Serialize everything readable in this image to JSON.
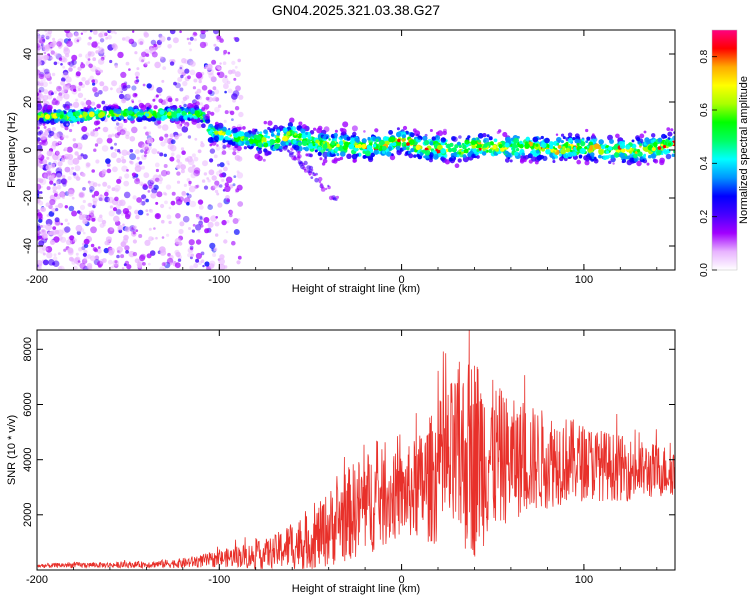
{
  "title": "GN04.2025.321.03.38.G27",
  "chart_data": [
    {
      "type": "heatmap",
      "xlabel": "Height of straight line (km)",
      "ylabel": "Frequency (Hz)",
      "xlim": [
        -200,
        150
      ],
      "ylim": [
        -50,
        50
      ],
      "xticks": [
        -200,
        -100,
        0,
        100
      ],
      "yticks": [
        -40,
        -20,
        0,
        20,
        40
      ],
      "colorbar": {
        "label": "Normalized spectral amplitude",
        "range": [
          0.0,
          0.9
        ],
        "ticks": [
          "0.0",
          "0.2",
          "0.4",
          "0.6",
          "0.8"
        ],
        "colors": [
          "#ffffff",
          "#e8b3ff",
          "#a100ff",
          "#4600ff",
          "#0000ff",
          "#0096ff",
          "#00ffff",
          "#00ff64",
          "#00ff00",
          "#aaff00",
          "#ffff00",
          "#ffaa00",
          "#ff0000",
          "#ff0080"
        ]
      },
      "ridge": {
        "x": [
          -200,
          -180,
          -160,
          -140,
          -120,
          -110,
          -105,
          -100,
          -95,
          -90,
          -80,
          -70,
          -60,
          -50,
          -40,
          -30,
          -20,
          -10,
          0,
          10,
          20,
          30,
          40,
          50,
          60,
          70,
          80,
          90,
          100,
          110,
          120,
          130,
          140,
          150
        ],
        "y": [
          14,
          14,
          15,
          15,
          15,
          15,
          7,
          7,
          6,
          5,
          4,
          4,
          6,
          3,
          2,
          2,
          1,
          2,
          4,
          1,
          1,
          0,
          2,
          1,
          1,
          2,
          0,
          1,
          1,
          0,
          0,
          0,
          1,
          2
        ]
      }
    },
    {
      "type": "line",
      "xlabel": "Height of straight line (km)",
      "ylabel": "SNR (10 * v/v)",
      "xlim": [
        -200,
        150
      ],
      "ylim": [
        0,
        8700
      ],
      "xticks": [
        -200,
        -100,
        0,
        100
      ],
      "yticks": [
        2000,
        4000,
        6000,
        8000
      ],
      "color": "#e8302a",
      "envelope": {
        "x": [
          -200,
          -180,
          -160,
          -140,
          -120,
          -100,
          -90,
          -80,
          -70,
          -60,
          -50,
          -40,
          -30,
          -20,
          -10,
          0,
          10,
          20,
          30,
          40,
          50,
          60,
          70,
          80,
          90,
          100,
          110,
          120,
          130,
          140,
          150
        ],
        "mean": [
          150,
          180,
          180,
          200,
          250,
          400,
          500,
          500,
          650,
          900,
          1000,
          1500,
          2000,
          2400,
          2600,
          2700,
          3000,
          3500,
          4000,
          4200,
          4100,
          4000,
          4000,
          4000,
          4000,
          3900,
          3800,
          3700,
          3600,
          3600,
          3600
        ],
        "amp": [
          80,
          100,
          100,
          120,
          180,
          300,
          400,
          500,
          600,
          900,
          1000,
          1400,
          1700,
          1900,
          1800,
          1500,
          2000,
          2600,
          3200,
          3800,
          2800,
          2200,
          2000,
          1800,
          1600,
          1400,
          1300,
          1200,
          1100,
          1000,
          900
        ]
      }
    }
  ]
}
